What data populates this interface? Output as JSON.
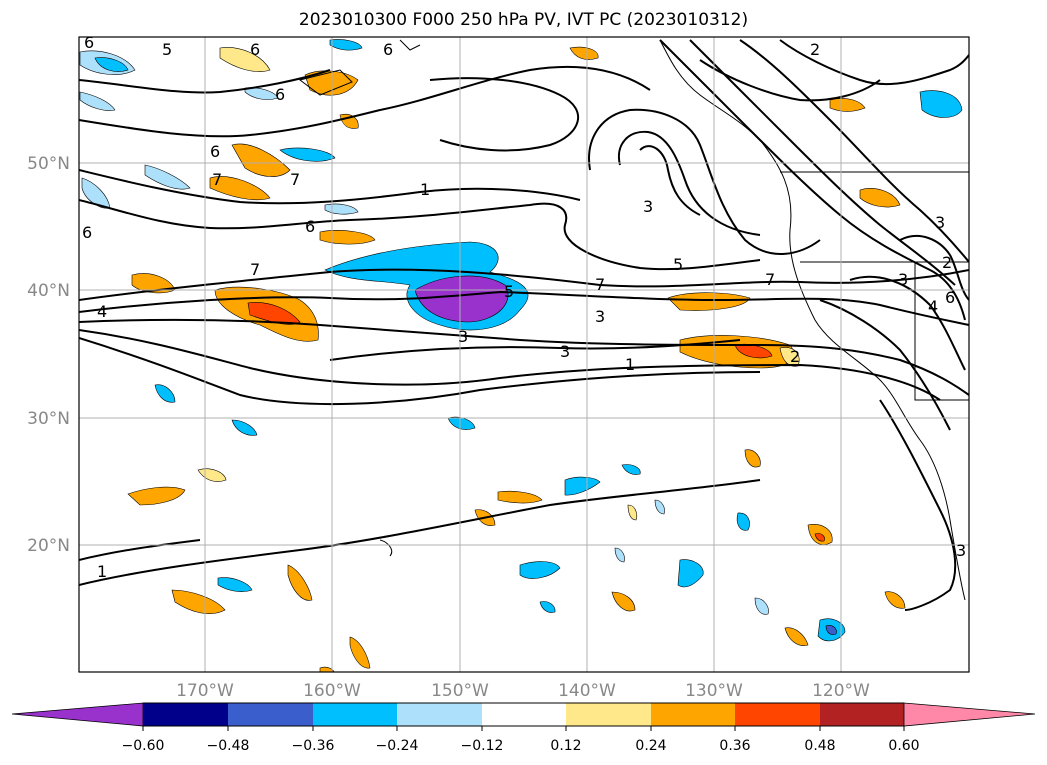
{
  "title": "2023010300 F000 250 hPa PV, IVT PC (2023010312)",
  "map": {
    "lat_labels": [
      "50°N",
      "40°N",
      "30°N",
      "20°N"
    ],
    "lon_labels": [
      "170°W",
      "160°W",
      "150°W",
      "140°W",
      "130°W",
      "120°W"
    ],
    "label_color": "#888888",
    "contour_labels": [
      "6",
      "5",
      "6",
      "6",
      "6",
      "6",
      "7",
      "1",
      "6",
      "6",
      "7",
      "7",
      "4",
      "3",
      "5",
      "3",
      "3",
      "1",
      "7",
      "5",
      "7",
      "2",
      "3",
      "2",
      "3",
      "1",
      "3",
      "6",
      "4",
      "3",
      "2"
    ]
  },
  "colorbar": {
    "ticks": [
      "−0.60",
      "−0.48",
      "−0.36",
      "−0.24",
      "−0.12",
      "0.12",
      "0.24",
      "0.36",
      "0.48",
      "0.60"
    ],
    "colors": [
      "#9932CC",
      "#00008B",
      "#3A5FCD",
      "#00BFFF",
      "#ADE0FA",
      "#FFFFFF",
      "#FFE88A",
      "#FFA500",
      "#FF4500",
      "#B22222",
      "#FF88A8"
    ]
  }
}
